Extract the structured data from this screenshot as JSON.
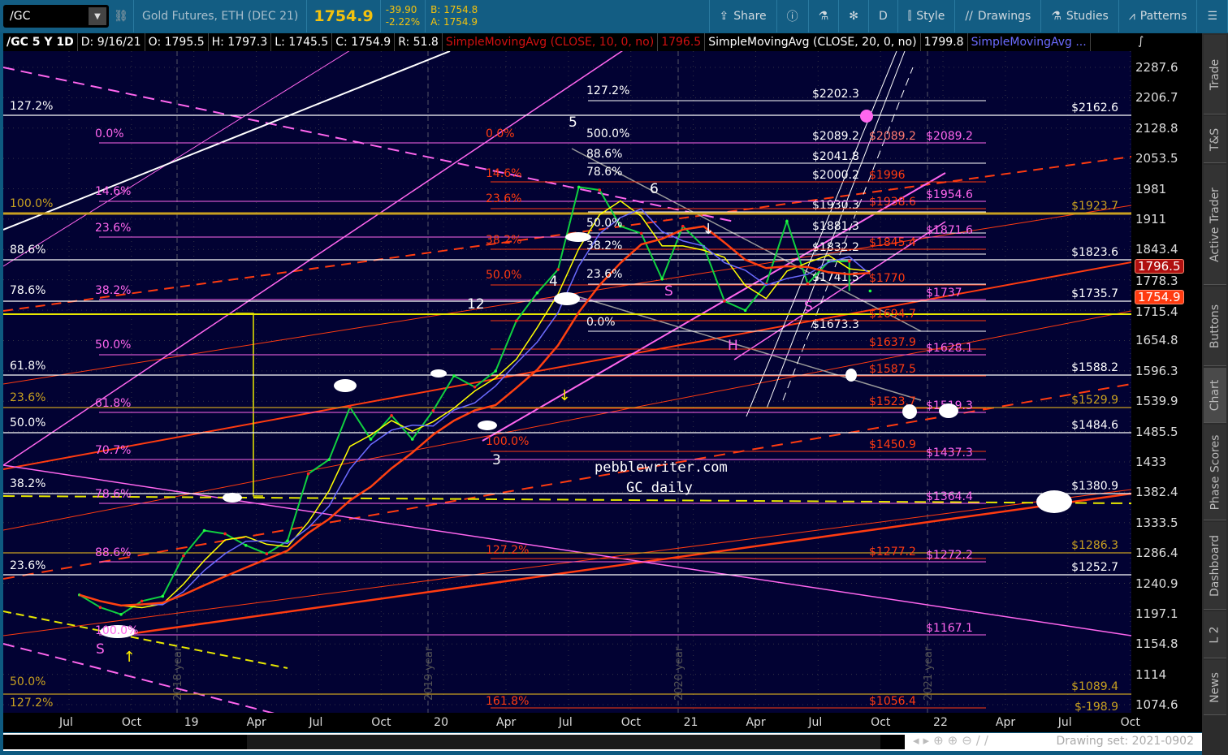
{
  "toolbar": {
    "symbol": "/GC",
    "description": "Gold Futures, ETH (DEC 21)",
    "last": "1754.9",
    "change": "-39.90",
    "change_pct": "-2.22%",
    "bid": "B: 1754.8",
    "ask": "A: 1754.9",
    "buttons": [
      {
        "label": "Share",
        "icon": "share-icon"
      },
      {
        "label": "",
        "icon": "info-icon"
      },
      {
        "label": "",
        "icon": "flask-icon"
      },
      {
        "label": "",
        "icon": "gear-icon"
      },
      {
        "label": "D",
        "icon": ""
      },
      {
        "label": "Style",
        "icon": "candle-icon"
      },
      {
        "label": "Drawings",
        "icon": "drawings-icon"
      },
      {
        "label": "Studies",
        "icon": "flask-icon"
      },
      {
        "label": "Patterns",
        "icon": "patterns-icon"
      },
      {
        "label": "",
        "icon": "menu-icon"
      }
    ]
  },
  "info_bar": {
    "title": "/GC 5 Y 1D",
    "date": "D: 9/16/21",
    "open": "O: 1795.5",
    "high": "H: 1797.3",
    "low": "L: 1745.5",
    "close": "C: 1754.9",
    "range": "R: 51.8",
    "studies": [
      {
        "text": "SimpleMovingAvg (CLOSE, 10, 0, no)",
        "color": "#d01010"
      },
      {
        "text": "1796.5",
        "color": "#d01010"
      },
      {
        "text": "SimpleMovingAvg (CLOSE, 20, 0, no)",
        "color": "#ffffff"
      },
      {
        "text": "1799.8",
        "color": "#ffffff"
      },
      {
        "text": "SimpleMovingAvg ...",
        "color": "#6b6bff"
      }
    ]
  },
  "side_tabs": [
    "Trade",
    "T&S",
    "Active Trader",
    "Buttons",
    "Chart",
    "Phase Scores",
    "Dashboard",
    "L 2",
    "News"
  ],
  "active_tab": "Chart",
  "scroll": {
    "drawing_set": "Drawing set: 2021-0902"
  },
  "watermark": [
    "pebblewriter.com",
    "GC daily"
  ],
  "chart_data": {
    "type": "line",
    "scale": "log",
    "ylim": [
      1074.6,
      2287.6
    ],
    "y_ticks": [
      2287.6,
      2206.7,
      2128.8,
      2053.5,
      1981,
      1911,
      1843.4,
      1778.3,
      1715.4,
      1654.8,
      1596.3,
      1539.9,
      1485.5,
      1433,
      1382.4,
      1333.5,
      1286.4,
      1240.9,
      1197.1,
      1154.8,
      1114,
      1074.6
    ],
    "x_ticks": [
      "Jul",
      "Oct",
      "19",
      "Apr",
      "Jul",
      "Oct",
      "20",
      "Apr",
      "Jul",
      "Oct",
      "21",
      "Apr",
      "Jul",
      "Oct",
      "22",
      "Apr",
      "Jul",
      "Oct"
    ],
    "price_badges": [
      {
        "value": "1796.5",
        "color": "#b01010"
      },
      {
        "value": "1754.9",
        "color": "#ff3b10"
      }
    ],
    "x": [
      "2018-07",
      "2018-08",
      "2018-09",
      "2018-10",
      "2018-11",
      "2018-12",
      "2019-01",
      "2019-02",
      "2019-03",
      "2019-04",
      "2019-05",
      "2019-06",
      "2019-07",
      "2019-08",
      "2019-09",
      "2019-10",
      "2019-11",
      "2019-12",
      "2020-01",
      "2020-02",
      "2020-03",
      "2020-04",
      "2020-05",
      "2020-06",
      "2020-07",
      "2020-08",
      "2020-09",
      "2020-10",
      "2020-11",
      "2020-12",
      "2021-01",
      "2021-02",
      "2021-03",
      "2021-04",
      "2021-05",
      "2021-06",
      "2021-07",
      "2021-08",
      "2021-09-16"
    ],
    "close": [
      1224,
      1206,
      1196,
      1215,
      1222,
      1282,
      1321,
      1316,
      1298,
      1285,
      1305,
      1413,
      1437,
      1529,
      1472,
      1514,
      1472,
      1523,
      1587,
      1566,
      1596,
      1694,
      1751,
      1800,
      1985,
      1978,
      1895,
      1879,
      1780,
      1895,
      1850,
      1734,
      1715,
      1769,
      1906,
      1770,
      1817,
      1818,
      1754.9
    ],
    "right_levels": [
      {
        "label": "$2162.6",
        "color": "#ffffff"
      },
      {
        "label": "$1923.7",
        "color": "#c8a020"
      },
      {
        "label": "$1823.6",
        "color": "#ffffff"
      },
      {
        "label": "$1735.7",
        "color": "#ffffff"
      },
      {
        "label": "$1588.2",
        "color": "#ffffff"
      },
      {
        "label": "$1529.9",
        "color": "#c8a020"
      },
      {
        "label": "$1484.6",
        "color": "#ffffff"
      },
      {
        "label": "$1380.9",
        "color": "#ffffff"
      },
      {
        "label": "$1286.3",
        "color": "#c8a020"
      },
      {
        "label": "$1252.7",
        "color": "#ffffff"
      },
      {
        "label": "$1089.4",
        "color": "#c8a020"
      },
      {
        "label": "$-198.9",
        "color": "#c8a020"
      }
    ],
    "mid_levels": [
      {
        "label": "$2202.3",
        "color": "#ffffff"
      },
      {
        "label": "$2089.2",
        "color": "#ffffff"
      },
      {
        "label": "$2041.8",
        "color": "#ffffff"
      },
      {
        "label": "$2000.2",
        "color": "#ffffff"
      },
      {
        "label": "$1930.3",
        "color": "#ffffff"
      },
      {
        "label": "$1881.3",
        "color": "#ffffff"
      },
      {
        "label": "$1832.2",
        "color": "#ffffff"
      },
      {
        "label": "$1741.5",
        "color": "#ffffff"
      },
      {
        "label": "$1673.3",
        "color": "#ffffff"
      },
      {
        "label": "$2089.2",
        "color": "#ff7a70"
      },
      {
        "label": "$1996",
        "color": "#ff3b10"
      },
      {
        "label": "$1938.6",
        "color": "#ff3b10"
      },
      {
        "label": "$1845.4",
        "color": "#ff3b10"
      },
      {
        "label": "$1770",
        "color": "#ff3b10"
      },
      {
        "label": "$1694.7",
        "color": "#ff3b10"
      },
      {
        "label": "$1637.9",
        "color": "#ff3b10"
      },
      {
        "label": "$1587.5",
        "color": "#ff3b10"
      },
      {
        "label": "$1523.7",
        "color": "#ff3b10"
      },
      {
        "label": "$1450.9",
        "color": "#ff3b10"
      },
      {
        "label": "$1277.2",
        "color": "#ff3b10"
      },
      {
        "label": "$1056.4",
        "color": "#ff3b10"
      },
      {
        "label": "$2089.2",
        "color": "#ff66ee"
      },
      {
        "label": "$1954.6",
        "color": "#ff66ee"
      },
      {
        "label": "$1871.6",
        "color": "#ff66ee"
      },
      {
        "label": "$1737",
        "color": "#ff66ee"
      },
      {
        "label": "$1628.1",
        "color": "#ff66ee"
      },
      {
        "label": "$1519.3",
        "color": "#ff66ee"
      },
      {
        "label": "$1437.3",
        "color": "#ff66ee"
      },
      {
        "label": "$1364.4",
        "color": "#ff66ee"
      },
      {
        "label": "$1272.2",
        "color": "#ff66ee"
      },
      {
        "label": "$1167.1",
        "color": "#ff66ee"
      }
    ],
    "fib_labels": [
      {
        "text": "127.2%",
        "color": "#ffffff"
      },
      {
        "text": "100.0%",
        "color": "#c8a020"
      },
      {
        "text": "88.6%",
        "color": "#ffffff"
      },
      {
        "text": "78.6%",
        "color": "#ffffff"
      },
      {
        "text": "61.8%",
        "color": "#ffffff"
      },
      {
        "text": "23.6%",
        "color": "#c8a020"
      },
      {
        "text": "50.0%",
        "color": "#ffffff"
      },
      {
        "text": "38.2%",
        "color": "#ffffff"
      },
      {
        "text": "23.6%",
        "color": "#ffffff"
      },
      {
        "text": "50.0%",
        "color": "#c8a020"
      },
      {
        "text": "127.2%",
        "color": "#c8a020"
      },
      {
        "text": "0.0%",
        "color": "#ff66ee"
      },
      {
        "text": "14.6%",
        "color": "#ff66ee"
      },
      {
        "text": "23.6%",
        "color": "#ff66ee"
      },
      {
        "text": "38.2%",
        "color": "#ff66ee"
      },
      {
        "text": "50.0%",
        "color": "#ff66ee"
      },
      {
        "text": "61.8%",
        "color": "#ff66ee"
      },
      {
        "text": "70.7%",
        "color": "#ff66ee"
      },
      {
        "text": "78.6%",
        "color": "#ff66ee"
      },
      {
        "text": "88.6%",
        "color": "#ff66ee"
      },
      {
        "text": "100.0%",
        "color": "#ff66ee"
      },
      {
        "text": "0.0%",
        "color": "#ff3b10"
      },
      {
        "text": "14.6%",
        "color": "#ff3b10"
      },
      {
        "text": "23.6%",
        "color": "#ff3b10"
      },
      {
        "text": "38.2%",
        "color": "#ff3b10"
      },
      {
        "text": "50.0%",
        "color": "#ff3b10"
      },
      {
        "text": "100.0%",
        "color": "#ff3b10"
      },
      {
        "text": "127.2%",
        "color": "#ff3b10"
      },
      {
        "text": "161.8%",
        "color": "#ff3b10"
      },
      {
        "text": "127.2%",
        "color": "#ffffff"
      },
      {
        "text": "500.0%",
        "color": "#ffffff"
      },
      {
        "text": "88.6%",
        "color": "#ffffff"
      },
      {
        "text": "78.6%",
        "color": "#ffffff"
      },
      {
        "text": "50.0%",
        "color": "#ffffff"
      },
      {
        "text": "38.2%",
        "color": "#ffffff"
      },
      {
        "text": "23.6%",
        "color": "#ffffff"
      },
      {
        "text": "0.0%",
        "color": "#ffffff"
      }
    ],
    "wave_labels": [
      "S",
      "3",
      "12",
      "4",
      "5",
      "6",
      "S",
      "H",
      "S"
    ],
    "year_labels": [
      "2018 year",
      "2019 year",
      "2020 year",
      "2021 year"
    ]
  }
}
